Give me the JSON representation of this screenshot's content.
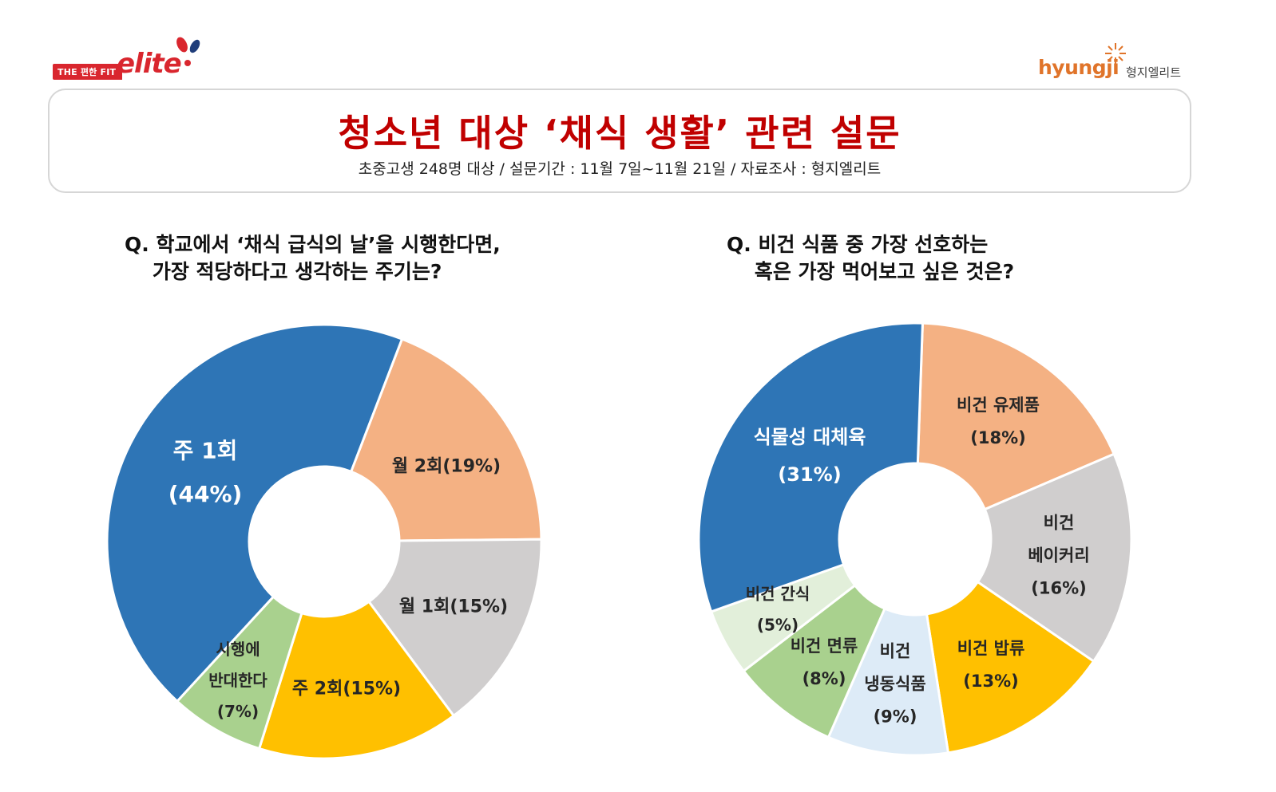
{
  "header": {
    "left_logo_tag": "THE 편한 FIT",
    "left_logo_word": "elite",
    "right_logo_brand": "hyungji",
    "right_logo_korean": "형지엘리트"
  },
  "title": "청소년 대상 ‘채식 생활’ 관련 설문",
  "subtitle": "초중고생 248명 대상 / 설문기간 : 11월 7일~11월 21일 / 자료조사 : 형지엘리트",
  "chart_data": [
    {
      "type": "pie",
      "title": "Q. 학교에서 ‘채식 급식의 날’을 시행한다면,\n    가장 적당하다고 생각하는 주기는?",
      "slices": [
        {
          "label_lines": [
            "월 2회(19%)"
          ],
          "value": 19,
          "color": "#f4b183",
          "text_color": "#262626"
        },
        {
          "label_lines": [
            "월 1회(15%)"
          ],
          "value": 15,
          "color": "#d0cece",
          "text_color": "#262626"
        },
        {
          "label_lines": [
            "주 2회(15%)"
          ],
          "value": 15,
          "color": "#ffc000",
          "text_color": "#262626"
        },
        {
          "label_lines": [
            "시행에",
            "반대한다",
            "(7%)"
          ],
          "value": 7,
          "color": "#a9d18e",
          "text_color": "#262626"
        },
        {
          "label_lines": [
            "주 1회",
            "(44%)"
          ],
          "value": 44,
          "color": "#2e75b6",
          "text_color": "#ffffff"
        }
      ]
    },
    {
      "type": "pie",
      "title": "Q. 비건 식품 중 가장 선호하는\n    혹은 가장 먹어보고 싶은 것은?",
      "slices": [
        {
          "label_lines": [
            "비건 유제품",
            "(18%)"
          ],
          "value": 18,
          "color": "#f4b183",
          "text_color": "#262626"
        },
        {
          "label_lines": [
            "비건",
            "베이커리",
            "(16%)"
          ],
          "value": 16,
          "color": "#d0cece",
          "text_color": "#262626"
        },
        {
          "label_lines": [
            "비건 밥류",
            "(13%)"
          ],
          "value": 13,
          "color": "#ffc000",
          "text_color": "#262626"
        },
        {
          "label_lines": [
            "비건",
            "냉동식품",
            "(9%)"
          ],
          "value": 9,
          "color": "#ddebf7",
          "text_color": "#262626"
        },
        {
          "label_lines": [
            "비건 면류",
            "(8%)"
          ],
          "value": 8,
          "color": "#a9d18e",
          "text_color": "#262626"
        },
        {
          "label_lines": [
            "비건 간식",
            "(5%)"
          ],
          "value": 5,
          "color": "#e2efda",
          "text_color": "#262626"
        },
        {
          "label_lines": [
            "식물성 대체육",
            "(31%)"
          ],
          "value": 31,
          "color": "#2e75b6",
          "text_color": "#ffffff"
        }
      ]
    }
  ]
}
